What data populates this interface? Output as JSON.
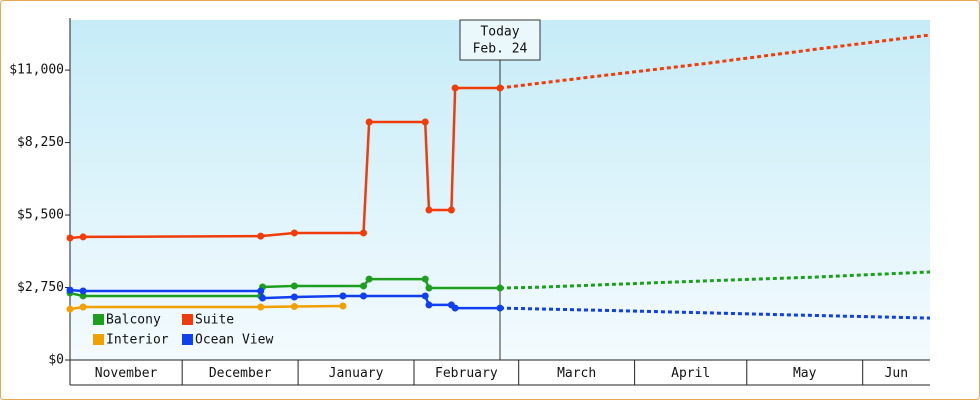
{
  "chart_data": {
    "type": "line",
    "xlim": [
      0,
      230
    ],
    "xticks": [
      {
        "value": 0,
        "label": "November"
      },
      {
        "value": 30,
        "label": "December"
      },
      {
        "value": 61,
        "label": "January"
      },
      {
        "value": 92,
        "label": "February"
      },
      {
        "value": 120,
        "label": "March"
      },
      {
        "value": 151,
        "label": "April"
      },
      {
        "value": 181,
        "label": "May"
      },
      {
        "value": 212,
        "label": "Jun"
      }
    ],
    "ylim": [
      0,
      12900
    ],
    "yticks": [
      {
        "value": 0,
        "label": "$0"
      },
      {
        "value": 2750,
        "label": "$2,750"
      },
      {
        "value": 5500,
        "label": "$5,500"
      },
      {
        "value": 8250,
        "label": "$8,250"
      },
      {
        "value": 11000,
        "label": "$11,000"
      }
    ],
    "annotation": {
      "x": 115,
      "lines": [
        "Today",
        "Feb. 24"
      ]
    },
    "series": [
      {
        "name": "Balcony",
        "color": "#1e9e1e",
        "x": [
          0,
          3.5,
          51,
          51.5,
          60,
          78.5,
          80,
          95,
          96,
          115
        ],
        "values": [
          2540,
          2430,
          2430,
          2770,
          2810,
          2810,
          3070,
          3070,
          2730,
          2730
        ],
        "forecast": {
          "x": [
            115,
            125,
            160,
            200,
            230
          ],
          "values": [
            2730,
            2760,
            2950,
            3150,
            3340
          ]
        }
      },
      {
        "name": "Suite",
        "color": "#f03c0a",
        "x": [
          0,
          3.5,
          51,
          60,
          78.5,
          80,
          95,
          96,
          102,
          103,
          115
        ],
        "values": [
          4630,
          4670,
          4700,
          4820,
          4820,
          9030,
          9030,
          5690,
          5690,
          10320,
          10320
        ],
        "forecast": {
          "x": [
            115,
            140,
            170,
            200,
            230
          ],
          "values": [
            10320,
            10750,
            11250,
            11800,
            12330
          ]
        }
      },
      {
        "name": "Interior",
        "color": "#f0a000",
        "x": [
          0,
          3.5,
          51,
          60,
          73
        ],
        "values": [
          1930,
          2010,
          2010,
          2030,
          2050
        ]
      },
      {
        "name": "Ocean View",
        "color": "#0f3fee",
        "x": [
          0,
          3.5,
          51,
          51.5,
          60,
          73,
          78.5,
          95,
          96,
          102,
          103,
          115
        ],
        "values": [
          2650,
          2620,
          2620,
          2350,
          2390,
          2430,
          2430,
          2430,
          2090,
          2090,
          1970,
          1970
        ],
        "forecast": {
          "x": [
            115,
            150,
            190,
            230
          ],
          "values": [
            1970,
            1860,
            1720,
            1590
          ]
        }
      }
    ]
  }
}
